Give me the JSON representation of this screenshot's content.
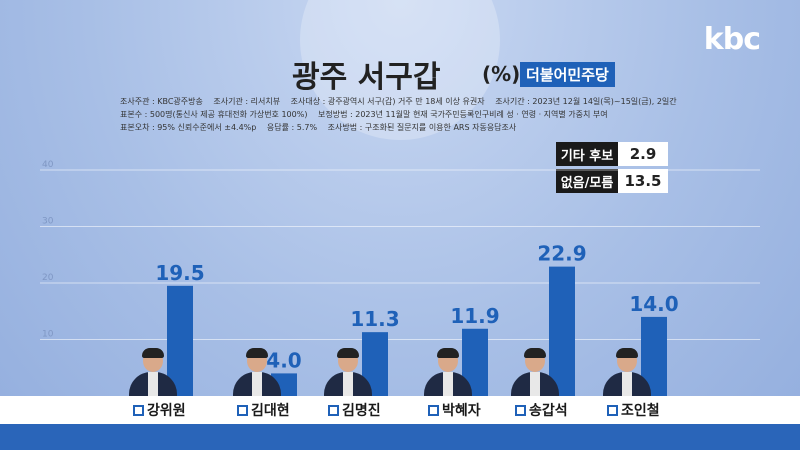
{
  "brand": "kbc",
  "title": "광주 서구갑",
  "unit": "(%)",
  "party": "더불어민주당",
  "info_lines": [
    [
      "조사주관 : KBC광주방송",
      "조사기관 : 리서치뷰",
      "조사대상 : 광주광역시 서구(갑) 거주 만 18세 이상 유권자",
      "조사기간 : 2023년 12월 14일(목)~15일(금), 2일간"
    ],
    [
      "표본수 : 500명(통신사 제공 휴대전화 가상번호 100%)",
      "보정방법 : 2023년 11월말 현재 국가주민등록인구비례 성 · 연령 · 지역별 가중치 부여"
    ],
    [
      "표본오차 : 95% 신뢰수준에서 ±4.4%p",
      "응답률 : 5.7%",
      "조사방법 : 구조화된 질문지를 이용한 ARS 자동응답조사"
    ]
  ],
  "side_items": [
    {
      "label": "기타 후보",
      "value": "2.9"
    },
    {
      "label": "없음/모름",
      "value": "13.5"
    }
  ],
  "colors": {
    "bar": "#1f61b8",
    "value_text": "#1f61b8",
    "footer": "#2a65b9"
  },
  "chart_data": {
    "type": "bar",
    "title": "광주 서구갑",
    "categories": [
      "강위원",
      "김대현",
      "김명진",
      "박혜자",
      "송갑석",
      "조인철"
    ],
    "values": [
      19.5,
      4.0,
      11.3,
      11.9,
      22.9,
      14.0
    ],
    "value_labels": [
      "19.5",
      "4.0",
      "11.3",
      "11.9",
      "22.9",
      "14.0"
    ],
    "yticks": [
      10,
      20,
      30,
      40
    ],
    "ylim": [
      0,
      40
    ],
    "grid": true,
    "xlabel": "",
    "ylabel": ""
  }
}
